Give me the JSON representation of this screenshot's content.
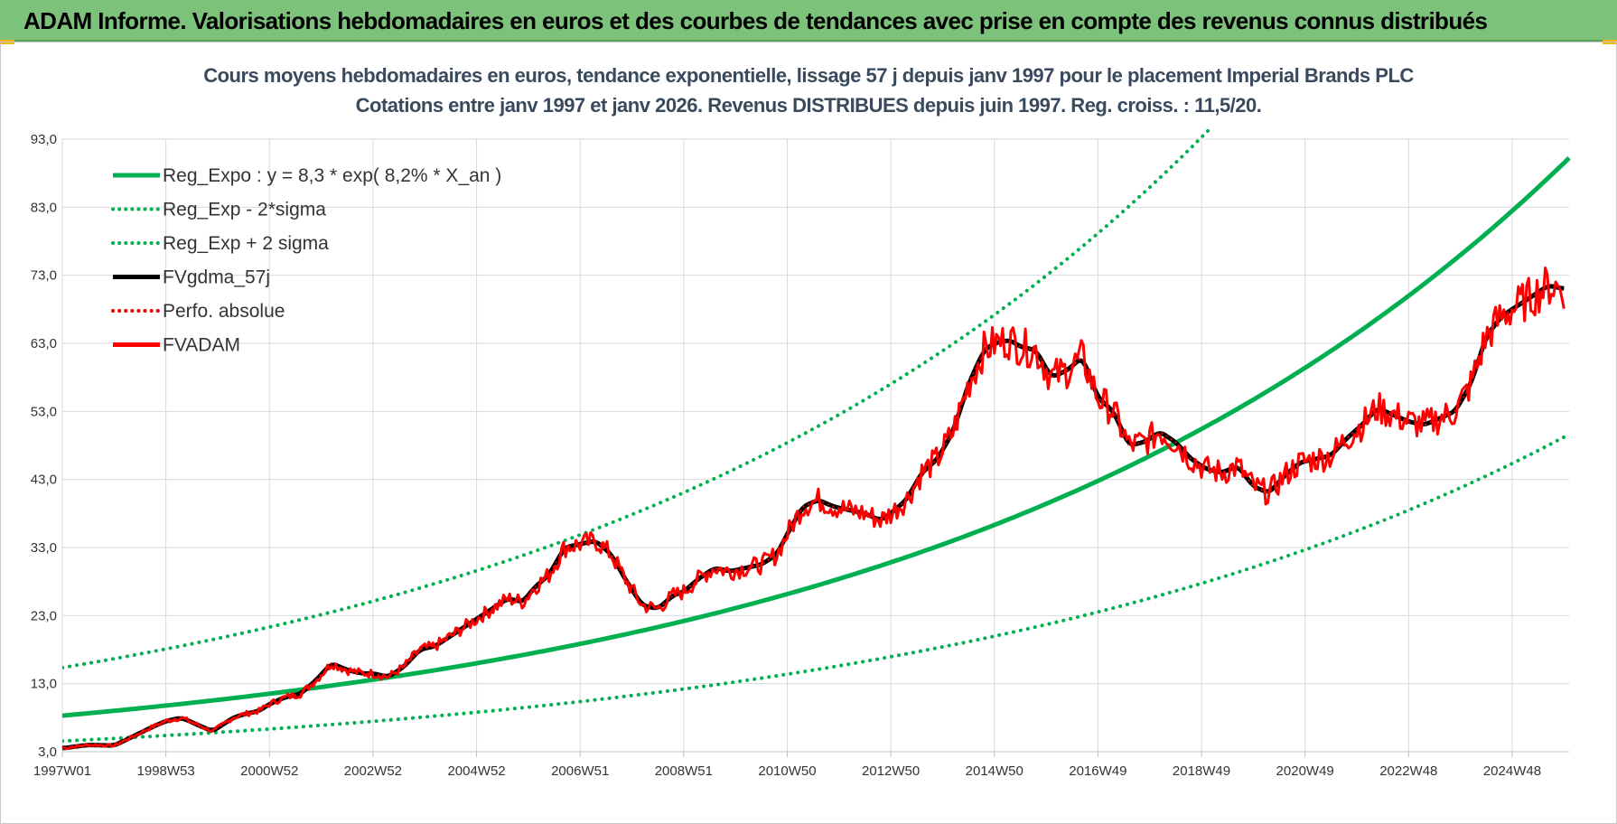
{
  "banner": {
    "title": "ADAM Informe. Valorisations hebdomadaires en euros et des courbes de tendances avec prise en compte des revenus connus distribués"
  },
  "chart_data": {
    "type": "line",
    "title": "Cours moyens hebdomadaires en euros, tendance exponentielle, lissage 57 j depuis janv 1997  pour le placement Imperial Brands PLC",
    "subtitle": "Cotations entre janv 1997 et janv 2026. Revenus DISTRIBUES depuis juin 1997. Reg. croiss. : 11,5/20.",
    "xlabel": "",
    "ylabel": "",
    "x_tick_labels": [
      "1997W01",
      "1998W53",
      "2000W52",
      "2002W52",
      "2004W52",
      "2006W51",
      "2008W51",
      "2010W50",
      "2012W50",
      "2014W50",
      "2016W49",
      "2018W49",
      "2020W49",
      "2022W48",
      "2024W48"
    ],
    "x_tick_years": [
      1997.0,
      1999.0,
      2001.0,
      2003.0,
      2005.0,
      2007.0,
      2009.0,
      2011.0,
      2013.0,
      2015.0,
      2017.0,
      2019.0,
      2021.0,
      2023.0,
      2025.0
    ],
    "xlim": [
      1997.0,
      2026.1
    ],
    "ylim": [
      3.0,
      93.0
    ],
    "y_ticks": [
      "3,0",
      "13,0",
      "23,0",
      "33,0",
      "43,0",
      "53,0",
      "63,0",
      "73,0",
      "83,0",
      "93,0"
    ],
    "grid": true,
    "legend_position": "top-left",
    "series": [
      {
        "name": "Reg_Expo : y = 8,3 * exp( 8,2% *  X_an )",
        "style": "solid",
        "color": "#00b050",
        "formula": {
          "a": 8.3,
          "rate": 0.082,
          "factor": 1.0
        }
      },
      {
        "name": "Reg_Exp - 2*sigma",
        "style": "dotted",
        "color": "#00b050",
        "formula": {
          "a": 8.3,
          "rate": 0.082,
          "factor": 0.55
        }
      },
      {
        "name": "Reg_Exp + 2 sigma",
        "style": "dotted",
        "color": "#00b050",
        "formula": {
          "a": 8.3,
          "rate": 0.082,
          "factor": 1.85
        }
      },
      {
        "name": "FVgdma_57j",
        "style": "solid",
        "color": "#000000"
      },
      {
        "name": "Perfo. absolue",
        "style": "dotted",
        "color": "#e00000"
      },
      {
        "name": "FVADAM",
        "style": "solid",
        "color": "#ff0000",
        "x": [
          1997.0,
          1997.5,
          1998.0,
          1998.3,
          1998.7,
          1999.0,
          1999.3,
          1999.6,
          1999.9,
          2000.1,
          2000.3,
          2000.5,
          2000.8,
          2001.0,
          2001.3,
          2001.6,
          2001.9,
          2002.2,
          2002.5,
          2002.8,
          2003.0,
          2003.3,
          2003.6,
          2003.9,
          2004.2,
          2004.5,
          2004.8,
          2005.0,
          2005.3,
          2005.6,
          2005.9,
          2006.1,
          2006.4,
          2006.7,
          2007.0,
          2007.3,
          2007.6,
          2007.9,
          2008.2,
          2008.5,
          2008.8,
          2009.0,
          2009.3,
          2009.6,
          2009.9,
          2010.2,
          2010.5,
          2010.8,
          2011.0,
          2011.3,
          2011.6,
          2011.9,
          2012.2,
          2012.5,
          2012.8,
          2013.0,
          2013.3,
          2013.6,
          2013.9,
          2014.2,
          2014.5,
          2014.8,
          2015.0,
          2015.3,
          2015.5,
          2015.8,
          2016.1,
          2016.4,
          2016.7,
          2017.0,
          2017.3,
          2017.6,
          2017.9,
          2018.2,
          2018.5,
          2018.8,
          2019.1,
          2019.4,
          2019.7,
          2020.0,
          2020.3,
          2020.6,
          2020.9,
          2021.2,
          2021.5,
          2021.8,
          2022.1,
          2022.4,
          2022.7,
          2023.0,
          2023.3,
          2023.6,
          2023.9,
          2024.2,
          2024.5,
          2024.8,
          2025.1,
          2025.4,
          2025.7,
          2026.0
        ],
        "values": [
          3.5,
          4.0,
          3.9,
          5.0,
          6.5,
          7.5,
          8.0,
          7.0,
          6.0,
          7.0,
          8.0,
          8.5,
          9.0,
          10.0,
          11.0,
          11.5,
          13.5,
          16.0,
          15.0,
          14.5,
          14.5,
          14.0,
          15.5,
          18.0,
          18.5,
          20.0,
          21.5,
          22.5,
          24.0,
          25.5,
          25.0,
          27.0,
          29.0,
          33.0,
          33.5,
          34.0,
          32.0,
          28.0,
          24.5,
          24.0,
          26.0,
          26.5,
          28.5,
          30.0,
          29.5,
          30.0,
          30.5,
          32.0,
          35.0,
          39.0,
          40.0,
          39.0,
          38.5,
          38.0,
          37.0,
          38.0,
          40.0,
          44.0,
          46.0,
          50.0,
          57.0,
          62.0,
          63.0,
          63.5,
          62.5,
          62.0,
          58.0,
          59.0,
          61.0,
          55.0,
          53.0,
          48.0,
          48.5,
          50.0,
          48.5,
          46.0,
          44.5,
          44.0,
          45.0,
          42.0,
          41.0,
          43.5,
          45.5,
          46.0,
          46.5,
          49.0,
          51.0,
          53.5,
          52.5,
          51.5,
          51.0,
          52.0,
          53.0,
          57.0,
          64.0,
          67.0,
          68.5,
          70.0,
          71.5,
          71.0
        ]
      }
    ]
  }
}
